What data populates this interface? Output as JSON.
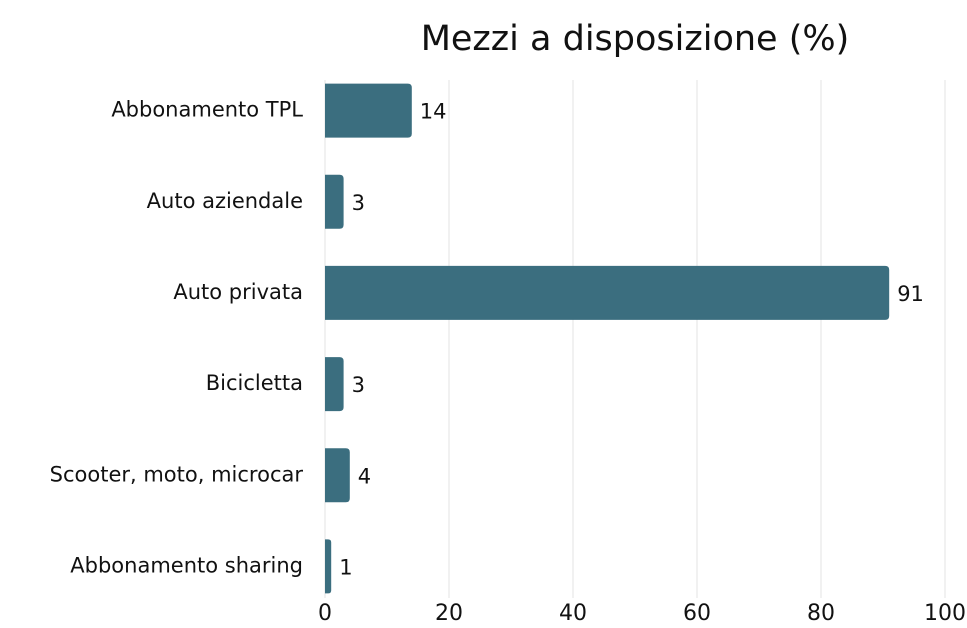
{
  "chart_data": {
    "type": "hbar",
    "title": "Mezzi a disposizione (%)",
    "categories": [
      "Abbonamento TPL",
      "Auto aziendale",
      "Auto privata",
      "Bicicletta",
      "Scooter, moto, microcar",
      "Abbonamento sharing"
    ],
    "values": [
      14,
      3,
      91,
      3,
      4,
      1
    ],
    "color": "#3b6e7f",
    "xlim": [
      0,
      100
    ],
    "xticks": [
      0,
      20,
      40,
      60,
      80,
      100
    ],
    "grid": true
  }
}
